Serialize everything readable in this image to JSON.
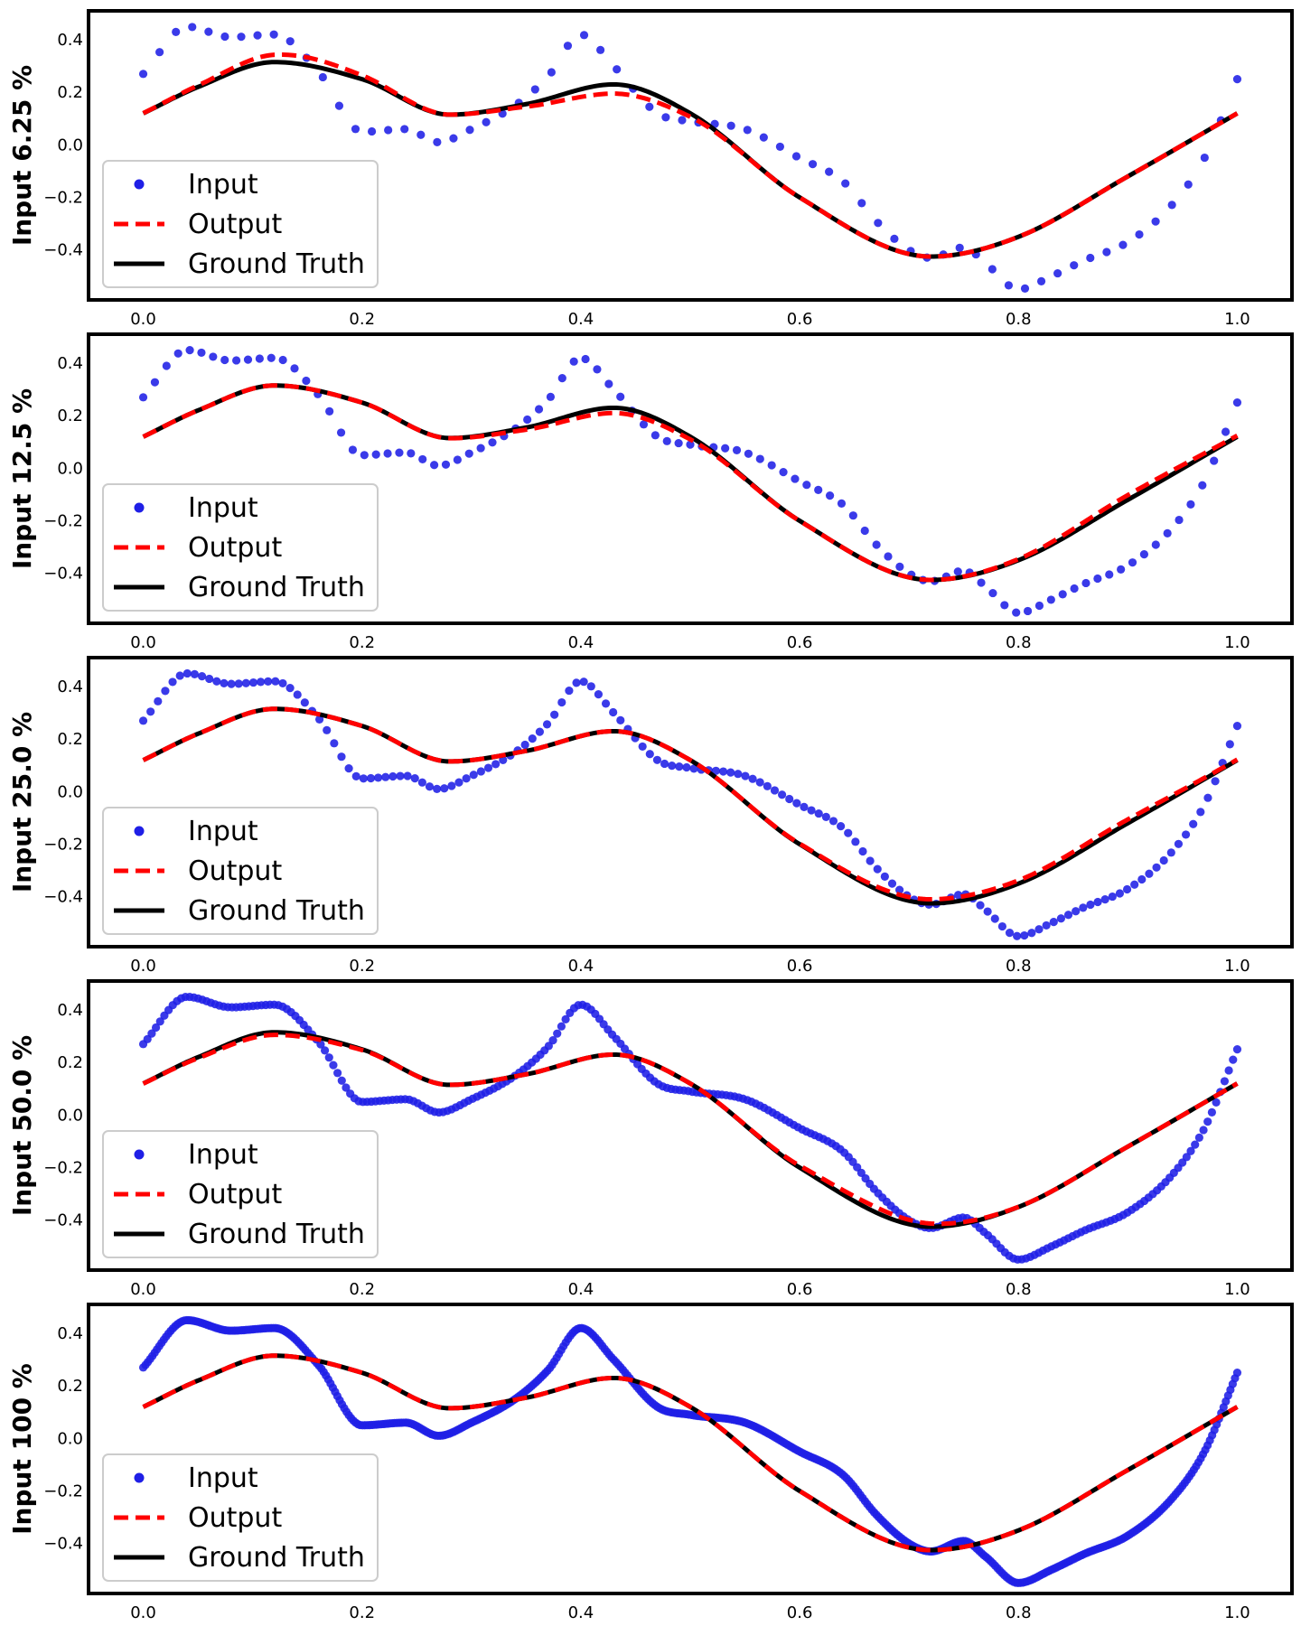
{
  "legend_labels": [
    "Input",
    "Output",
    "Ground Truth"
  ],
  "colors": {
    "input": "#1f1fe6",
    "output": "#ff0000",
    "ground_truth": "#000000"
  },
  "chart_data": [
    {
      "type": "line",
      "ylabel": "Input 6.25 %",
      "xlim": [
        -0.05,
        1.05
      ],
      "ylim": [
        -0.59,
        0.51
      ],
      "xticks": [
        "0.0",
        "0.2",
        "0.4",
        "0.6",
        "0.8",
        "1.0"
      ],
      "yticks": [
        "0.4",
        "0.2",
        "0.0",
        "−0.2",
        "−0.4"
      ],
      "legend": "lower-left",
      "grid": false,
      "input_fraction": 0.0625,
      "output_offset": {
        "center": 0.14,
        "amp": 0.03,
        "width": 0.05,
        "center2": 0.43,
        "amp2": -0.035,
        "width2": 0.05
      }
    },
    {
      "type": "line",
      "ylabel": "Input 12.5 %",
      "xlim": [
        -0.05,
        1.05
      ],
      "ylim": [
        -0.59,
        0.51
      ],
      "xticks": [
        "0.0",
        "0.2",
        "0.4",
        "0.6",
        "0.8",
        "1.0"
      ],
      "yticks": [
        "0.4",
        "0.2",
        "0.0",
        "−0.2",
        "−0.4"
      ],
      "legend": "lower-left",
      "grid": false,
      "input_fraction": 0.125,
      "output_offset": {
        "center": 0.43,
        "amp": -0.02,
        "width": 0.06,
        "center2": 0.9,
        "amp2": 0.018,
        "width2": 0.06
      }
    },
    {
      "type": "line",
      "ylabel": "Input 25.0 %",
      "xlim": [
        -0.05,
        1.05
      ],
      "ylim": [
        -0.59,
        0.51
      ],
      "xticks": [
        "0.0",
        "0.2",
        "0.4",
        "0.6",
        "0.8",
        "1.0"
      ],
      "yticks": [
        "0.4",
        "0.2",
        "0.0",
        "−0.2",
        "−0.4"
      ],
      "legend": "lower-left",
      "grid": false,
      "input_fraction": 0.25,
      "output_offset": {
        "center": 0.72,
        "amp": 0.015,
        "width": 0.06,
        "center2": 0.88,
        "amp2": 0.015,
        "width2": 0.06
      }
    },
    {
      "type": "line",
      "ylabel": "Input 50.0 %",
      "xlim": [
        -0.05,
        1.05
      ],
      "ylim": [
        -0.59,
        0.51
      ],
      "xticks": [
        "0.0",
        "0.2",
        "0.4",
        "0.6",
        "0.8",
        "1.0"
      ],
      "yticks": [
        "0.4",
        "0.2",
        "0.0",
        "−0.2",
        "−0.4"
      ],
      "legend": "lower-left",
      "grid": false,
      "input_fraction": 0.5,
      "output_offset": {
        "center": 0.12,
        "amp": -0.01,
        "width": 0.05,
        "center2": 0.67,
        "amp2": 0.02,
        "width2": 0.05
      }
    },
    {
      "type": "line",
      "ylabel": "Input 100 %",
      "xlim": [
        -0.05,
        1.05
      ],
      "ylim": [
        -0.59,
        0.51
      ],
      "xticks": [
        "0.0",
        "0.2",
        "0.4",
        "0.6",
        "0.8",
        "1.0"
      ],
      "yticks": [
        "0.4",
        "0.2",
        "0.0",
        "−0.2",
        "−0.4"
      ],
      "legend": "lower-left",
      "grid": false,
      "input_fraction": 1.0,
      "output_offset": {
        "center": 0.5,
        "amp": 0.0,
        "width": 0.05,
        "center2": 0.5,
        "amp2": 0.0,
        "width2": 0.05
      }
    }
  ],
  "ground_truth_knots": {
    "x": [
      0.0,
      0.05,
      0.12,
      0.2,
      0.28,
      0.35,
      0.43,
      0.5,
      0.6,
      0.72,
      0.8,
      0.9,
      1.0
    ],
    "y": [
      0.12,
      0.22,
      0.315,
      0.25,
      0.115,
      0.155,
      0.23,
      0.12,
      -0.2,
      -0.425,
      -0.35,
      -0.12,
      0.12
    ]
  },
  "input_knots": {
    "x": [
      0.0,
      0.04,
      0.08,
      0.12,
      0.16,
      0.2,
      0.24,
      0.27,
      0.3,
      0.34,
      0.37,
      0.4,
      0.43,
      0.47,
      0.5,
      0.55,
      0.6,
      0.64,
      0.67,
      0.7,
      0.72,
      0.75,
      0.77,
      0.8,
      0.83,
      0.86,
      0.9,
      0.94,
      0.97,
      1.0
    ],
    "y": [
      0.27,
      0.45,
      0.41,
      0.42,
      0.28,
      0.05,
      0.06,
      0.01,
      0.06,
      0.15,
      0.26,
      0.42,
      0.3,
      0.12,
      0.09,
      0.06,
      -0.05,
      -0.14,
      -0.29,
      -0.4,
      -0.43,
      -0.39,
      -0.45,
      -0.55,
      -0.5,
      -0.44,
      -0.37,
      -0.23,
      -0.05,
      0.25
    ]
  }
}
